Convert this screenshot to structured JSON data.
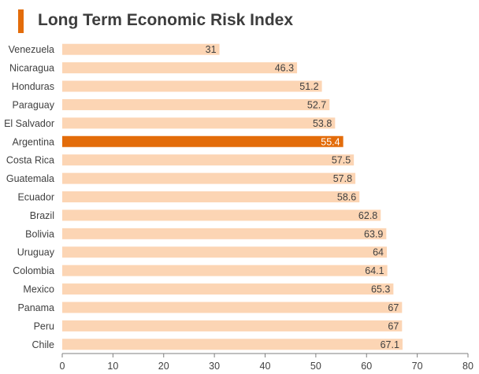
{
  "colors": {
    "accent": "#e36c0a",
    "bar": "#fcd5b4",
    "highlight_bar": "#e36c0a",
    "text": "#404040",
    "axis": "#7f7f7f"
  },
  "chart_data": {
    "type": "bar",
    "orientation": "horizontal",
    "title": "Long Term Economic Risk Index",
    "categories": [
      "Venezuela",
      "Nicaragua",
      "Honduras",
      "Paraguay",
      "El Salvador",
      "Argentina",
      "Costa Rica",
      "Guatemala",
      "Ecuador",
      "Brazil",
      "Bolivia",
      "Uruguay",
      "Colombia",
      "Mexico",
      "Panama",
      "Peru",
      "Chile"
    ],
    "values": [
      31,
      46.3,
      51.2,
      52.7,
      53.8,
      55.4,
      57.5,
      57.8,
      58.6,
      62.8,
      63.9,
      64,
      64.1,
      65.3,
      67,
      67,
      67.1
    ],
    "value_labels": [
      "31",
      "46.3",
      "51.2",
      "52.7",
      "53.8",
      "55.4",
      "57.5",
      "57.8",
      "58.6",
      "62.8",
      "63.9",
      "64",
      "64.1",
      "65.3",
      "67",
      "67",
      "67.1"
    ],
    "highlight": "Argentina",
    "xlim": [
      0,
      80
    ],
    "xticks": [
      "0",
      "10",
      "20",
      "30",
      "40",
      "50",
      "60",
      "70",
      "80"
    ],
    "grid": false,
    "legend": "none"
  }
}
